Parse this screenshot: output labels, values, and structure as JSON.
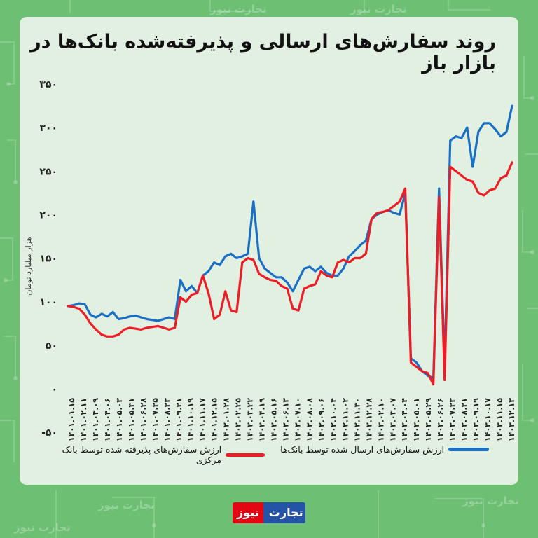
{
  "title": "روند سفارش‌های ارسالی و پذیرفته‌شده بانک‌ها در بازار باز",
  "brand": {
    "part1": "تجارت",
    "part2": "نیوز"
  },
  "watermark": "تجارت نیوز",
  "colors": {
    "sent": "#1a6fc4",
    "accepted": "#ee1c25",
    "background": "#6cbf73",
    "card": "#e2f0e2"
  },
  "chart_data": {
    "type": "line",
    "title": "روند سفارش‌های ارسالی و پذیرفته‌شده بانک‌ها در بازار باز",
    "ylabel": "هزار میلیارد تومان",
    "xlabel": "",
    "ylim": [
      -50,
      350
    ],
    "yticks": [
      -50,
      0,
      50,
      100,
      150,
      200,
      250,
      300,
      350
    ],
    "ytick_labels": [
      "-۵۰",
      "۰",
      "۵۰",
      "۱۰۰",
      "۱۵۰",
      "۲۰۰",
      "۲۵۰",
      "۳۰۰",
      "۳۵۰"
    ],
    "grid": false,
    "legend_position": "bottom",
    "x_tick_labels": [
      "۱۴۰۱.۰۱.۱۵",
      "۱۴۰۱.۰۲.۱۱",
      "۱۴۰۱.۰۳.۰۹",
      "۱۴۰۱.۰۴.۰۶",
      "۱۴۰۱.۰۵.۰۳",
      "۱۴۰۱.۰۵.۳۱",
      "۱۴۰۱.۰۶.۲۸",
      "۱۴۰۱.۰۷.۲۵",
      "۱۴۰۱.۰۸.۲۳",
      "۱۴۰۱.۰۹.۲۱",
      "۱۴۰۱.۱۰.۱۹",
      "۱۴۰۱.۱۱.۱۷",
      "۱۴۰۱.۱۲.۱۵",
      "۱۴۰۲.۰۱.۲۸",
      "۱۴۰۲.۰۲.۲۵",
      "۱۴۰۲.۰۳.۲۲",
      "۱۴۰۲.۰۴.۱۹",
      "۱۴۰۲.۰۵.۱۶",
      "۱۴۰۲.۰۶.۱۳",
      "۱۴۰۲.۰۷.۱۰",
      "۱۴۰۲.۰۸.۰۸",
      "۱۴۰۲.۰۹.۰۶",
      "۱۴۰۲.۱۰.۰۴",
      "۱۴۰۲.۱۱.۰۲",
      "۱۴۰۲.۱۱.۳۰",
      "۱۴۰۲.۱۲.۲۸",
      "۱۴۰۳.۰۲.۱۰",
      "۱۴۰۳.۰۳.۰۷",
      "۱۴۰۳.۰۴.۰۴",
      "۱۴۰۳.۰۵.۰۱",
      "۱۴۰۳.۰۵.۲۹",
      "۱۴۰۳.۰۶.۲۶",
      "۱۴۰۳.۰۷.۲۳",
      "۱۴۰۳.۰۸.۲۱",
      "۱۴۰۳.۰۹.۱۹",
      "۱۴۰۳.۱۰.۱۷",
      "۱۴۰۳.۱۱.۱۵",
      "۱۴۰۳.۱۲.۱۳"
    ],
    "series": [
      {
        "name": "ارزش سفارش‌های ارسال شده توسط بانک‌ها",
        "color": "#1a6fc4",
        "points": [
          [
            0,
            95
          ],
          [
            0.5,
            96
          ],
          [
            1,
            98
          ],
          [
            1.5,
            97
          ],
          [
            2,
            85
          ],
          [
            2.5,
            82
          ],
          [
            3,
            86
          ],
          [
            3.5,
            83
          ],
          [
            4,
            88
          ],
          [
            4.5,
            80
          ],
          [
            5,
            81
          ],
          [
            5.5,
            83
          ],
          [
            6,
            84
          ],
          [
            6.5,
            82
          ],
          [
            7,
            80
          ],
          [
            7.5,
            79
          ],
          [
            8,
            78
          ],
          [
            8.5,
            80
          ],
          [
            9,
            82
          ],
          [
            9.5,
            80
          ],
          [
            10,
            125
          ],
          [
            10.5,
            112
          ],
          [
            11,
            118
          ],
          [
            11.5,
            110
          ],
          [
            12,
            130
          ],
          [
            12.5,
            135
          ],
          [
            13,
            145
          ],
          [
            13.5,
            142
          ],
          [
            14,
            152
          ],
          [
            14.5,
            155
          ],
          [
            15,
            150
          ],
          [
            15.5,
            152
          ],
          [
            16,
            155
          ],
          [
            16.5,
            215
          ],
          [
            17,
            150
          ],
          [
            17.5,
            138
          ],
          [
            18,
            133
          ],
          [
            18.5,
            128
          ],
          [
            19,
            128
          ],
          [
            19.5,
            122
          ],
          [
            20,
            112
          ],
          [
            20.5,
            125
          ],
          [
            21,
            138
          ],
          [
            21.5,
            140
          ],
          [
            22,
            135
          ],
          [
            22.5,
            140
          ],
          [
            23,
            133
          ],
          [
            23.5,
            130
          ],
          [
            24,
            130
          ],
          [
            24.5,
            138
          ],
          [
            25,
            152
          ],
          [
            25.5,
            158
          ],
          [
            26,
            165
          ],
          [
            26.5,
            170
          ],
          [
            27,
            195
          ],
          [
            27.5,
            200
          ],
          [
            28,
            203
          ],
          [
            28.5,
            205
          ],
          [
            29,
            202
          ],
          [
            29.5,
            200
          ],
          [
            30,
            225
          ],
          [
            30.5,
            35
          ],
          [
            31,
            30
          ],
          [
            31.5,
            20
          ],
          [
            32,
            15
          ],
          [
            32.5,
            12
          ],
          [
            33,
            230
          ],
          [
            33.5,
            25
          ],
          [
            34,
            285
          ],
          [
            34.5,
            290
          ],
          [
            35,
            288
          ],
          [
            35.5,
            300
          ],
          [
            36,
            255
          ],
          [
            36.5,
            295
          ],
          [
            37,
            305
          ],
          [
            37.5,
            305
          ],
          [
            38,
            298
          ],
          [
            38.5,
            290
          ],
          [
            39,
            295
          ],
          [
            39.5,
            325
          ]
        ]
      },
      {
        "name": "ارزش سفارش‌های پذیرفته شده توسط بانک مرکزی",
        "color": "#ee1c25",
        "points": [
          [
            0,
            95
          ],
          [
            0.5,
            94
          ],
          [
            1,
            92
          ],
          [
            1.5,
            85
          ],
          [
            2,
            75
          ],
          [
            2.5,
            68
          ],
          [
            3,
            62
          ],
          [
            3.5,
            60
          ],
          [
            4,
            60
          ],
          [
            4.5,
            62
          ],
          [
            5,
            68
          ],
          [
            5.5,
            70
          ],
          [
            6,
            69
          ],
          [
            6.5,
            68
          ],
          [
            7,
            70
          ],
          [
            7.5,
            71
          ],
          [
            8,
            72
          ],
          [
            8.5,
            70
          ],
          [
            9,
            68
          ],
          [
            9.5,
            70
          ],
          [
            10,
            105
          ],
          [
            10.5,
            100
          ],
          [
            11,
            108
          ],
          [
            11.5,
            110
          ],
          [
            12,
            130
          ],
          [
            12.5,
            110
          ],
          [
            13,
            80
          ],
          [
            13.5,
            85
          ],
          [
            14,
            112
          ],
          [
            14.5,
            90
          ],
          [
            15,
            88
          ],
          [
            15.5,
            145
          ],
          [
            16,
            150
          ],
          [
            16.5,
            148
          ],
          [
            17,
            132
          ],
          [
            17.5,
            128
          ],
          [
            18,
            125
          ],
          [
            18.5,
            124
          ],
          [
            19,
            118
          ],
          [
            19.5,
            115
          ],
          [
            20,
            92
          ],
          [
            20.5,
            90
          ],
          [
            21,
            115
          ],
          [
            21.5,
            118
          ],
          [
            22,
            120
          ],
          [
            22.5,
            135
          ],
          [
            23,
            130
          ],
          [
            23.5,
            128
          ],
          [
            24,
            145
          ],
          [
            24.5,
            148
          ],
          [
            25,
            145
          ],
          [
            25.5,
            150
          ],
          [
            26,
            150
          ],
          [
            26.5,
            155
          ],
          [
            27,
            195
          ],
          [
            27.5,
            202
          ],
          [
            28,
            203
          ],
          [
            28.5,
            205
          ],
          [
            29,
            210
          ],
          [
            29.5,
            215
          ],
          [
            30,
            230
          ],
          [
            30.5,
            30
          ],
          [
            31,
            25
          ],
          [
            31.5,
            20
          ],
          [
            32,
            18
          ],
          [
            32.5,
            5
          ],
          [
            33,
            220
          ],
          [
            33.5,
            10
          ],
          [
            34,
            255
          ],
          [
            34.5,
            250
          ],
          [
            35,
            245
          ],
          [
            35.5,
            240
          ],
          [
            36,
            238
          ],
          [
            36.5,
            225
          ],
          [
            37,
            222
          ],
          [
            37.5,
            228
          ],
          [
            38,
            230
          ],
          [
            38.5,
            242
          ],
          [
            39,
            245
          ],
          [
            39.5,
            260
          ]
        ]
      }
    ]
  }
}
